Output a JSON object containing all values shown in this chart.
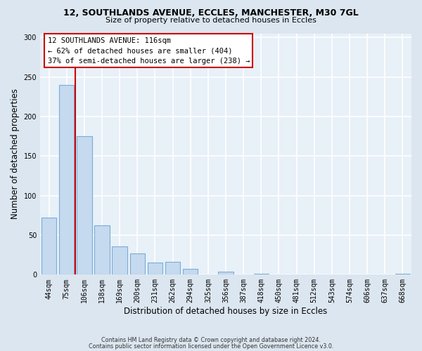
{
  "title1": "12, SOUTHLANDS AVENUE, ECCLES, MANCHESTER, M30 7GL",
  "title2": "Size of property relative to detached houses in Eccles",
  "xlabel": "Distribution of detached houses by size in Eccles",
  "ylabel": "Number of detached properties",
  "categories": [
    "44sqm",
    "75sqm",
    "106sqm",
    "138sqm",
    "169sqm",
    "200sqm",
    "231sqm",
    "262sqm",
    "294sqm",
    "325sqm",
    "356sqm",
    "387sqm",
    "418sqm",
    "450sqm",
    "481sqm",
    "512sqm",
    "543sqm",
    "574sqm",
    "606sqm",
    "637sqm",
    "668sqm"
  ],
  "values": [
    72,
    240,
    175,
    62,
    36,
    27,
    15,
    16,
    7,
    0,
    4,
    0,
    1,
    0,
    0,
    0,
    0,
    0,
    0,
    0,
    1
  ],
  "bar_color": "#c5d9ef",
  "bar_edge_color": "#7aadd4",
  "vline_index": 2,
  "vline_color": "#cc0000",
  "annotation_line1": "12 SOUTHLANDS AVENUE: 116sqm",
  "annotation_line2": "← 62% of detached houses are smaller (404)",
  "annotation_line3": "37% of semi-detached houses are larger (238) →",
  "annotation_box_facecolor": "#ffffff",
  "annotation_box_edgecolor": "#cc0000",
  "ylim": [
    0,
    305
  ],
  "yticks": [
    0,
    50,
    100,
    150,
    200,
    250,
    300
  ],
  "footer1": "Contains HM Land Registry data © Crown copyright and database right 2024.",
  "footer2": "Contains public sector information licensed under the Open Government Licence v3.0.",
  "fig_facecolor": "#dce6f0",
  "plot_facecolor": "#e8f0f8"
}
